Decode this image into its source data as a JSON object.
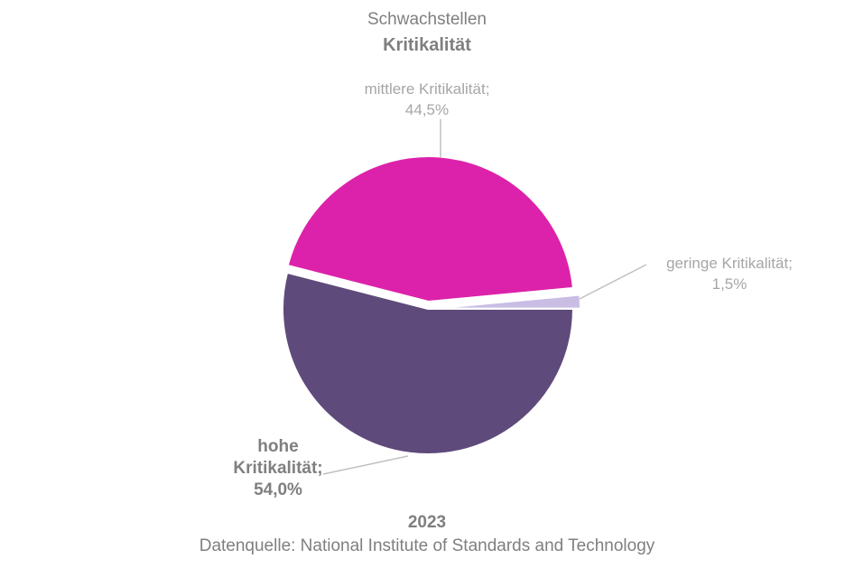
{
  "chart_data": {
    "type": "pie",
    "title": "Schwachstellen",
    "subtitle": "Kritikalität",
    "year": "2023",
    "source": "Datenquelle: National Institute of Standards and Technology",
    "slices": [
      {
        "name": "hohe Kritikalität",
        "value": 54.0,
        "label_lines": [
          "hohe",
          "Kritikalität;",
          "54,0%"
        ],
        "color": "#5e4a7b",
        "exploded": false
      },
      {
        "name": "mittlere Kritikalität",
        "value": 44.5,
        "label_lines": [
          "mittlere Kritikalität;",
          "44,5%"
        ],
        "color": "#dc22aa",
        "exploded": true
      },
      {
        "name": "geringe Kritikalität",
        "value": 1.5,
        "label_lines": [
          "geringe Kritikalität;",
          "1,5%"
        ],
        "color": "#c9bde4",
        "exploded": true
      }
    ]
  }
}
